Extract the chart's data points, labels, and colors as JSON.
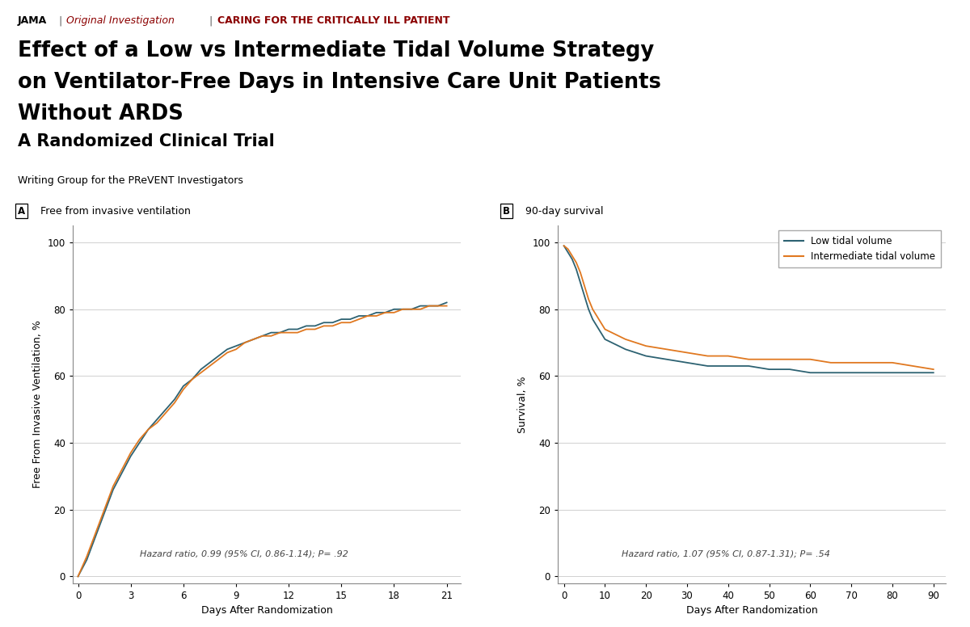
{
  "color_low": "#2d6272",
  "color_intermediate": "#e07820",
  "panel_a_xlabel": "Days After Randomization",
  "panel_a_ylabel": "Free From Invasive Ventilation, %",
  "panel_b_xlabel": "Days After Randomization",
  "panel_b_ylabel": "Survival, %",
  "panel_a_xticks": [
    0,
    3,
    6,
    9,
    12,
    15,
    18,
    21
  ],
  "panel_a_yticks": [
    0,
    20,
    40,
    60,
    80,
    100
  ],
  "panel_b_xticks": [
    0,
    10,
    20,
    30,
    40,
    50,
    60,
    70,
    80,
    90
  ],
  "panel_b_yticks": [
    0,
    20,
    40,
    60,
    80,
    100
  ],
  "panel_a_xlim": [
    -0.3,
    21.8
  ],
  "panel_a_ylim": [
    -2,
    105
  ],
  "panel_b_xlim": [
    -1.5,
    93
  ],
  "panel_b_ylim": [
    -2,
    105
  ],
  "panel_a_annotation": "Hazard ratio, 0.99 (95% CI, 0.86-1.14); P= .92",
  "panel_b_annotation": "Hazard ratio, 1.07 (95% CI, 0.87-1.31); P= .54",
  "legend_low": "Low tidal volume",
  "legend_intermediate": "Intermediate tidal volume",
  "background_color": "#ffffff",
  "panel_a_low_x": [
    0,
    0.5,
    1,
    1.5,
    2,
    2.5,
    3,
    3.5,
    4,
    4.5,
    5,
    5.5,
    6,
    6.5,
    7,
    7.5,
    8,
    8.5,
    9,
    9.5,
    10,
    10.5,
    11,
    11.5,
    12,
    12.5,
    13,
    13.5,
    14,
    14.5,
    15,
    15.5,
    16,
    16.5,
    17,
    17.5,
    18,
    18.5,
    19,
    19.5,
    20,
    20.5,
    21
  ],
  "panel_a_low_y": [
    0,
    5,
    12,
    19,
    26,
    31,
    36,
    40,
    44,
    47,
    50,
    53,
    57,
    59,
    62,
    64,
    66,
    68,
    69,
    70,
    71,
    72,
    73,
    73,
    74,
    74,
    75,
    75,
    76,
    76,
    77,
    77,
    78,
    78,
    79,
    79,
    80,
    80,
    80,
    81,
    81,
    81,
    82
  ],
  "panel_a_int_x": [
    0,
    0.5,
    1,
    1.5,
    2,
    2.5,
    3,
    3.5,
    4,
    4.5,
    5,
    5.5,
    6,
    6.5,
    7,
    7.5,
    8,
    8.5,
    9,
    9.5,
    10,
    10.5,
    11,
    11.5,
    12,
    12.5,
    13,
    13.5,
    14,
    14.5,
    15,
    15.5,
    16,
    16.5,
    17,
    17.5,
    18,
    18.5,
    19,
    19.5,
    20,
    20.5,
    21
  ],
  "panel_a_int_y": [
    0,
    6,
    13,
    20,
    27,
    32,
    37,
    41,
    44,
    46,
    49,
    52,
    56,
    59,
    61,
    63,
    65,
    67,
    68,
    70,
    71,
    72,
    72,
    73,
    73,
    73,
    74,
    74,
    75,
    75,
    76,
    76,
    77,
    78,
    78,
    79,
    79,
    80,
    80,
    80,
    81,
    81,
    81
  ],
  "panel_b_low_x": [
    0,
    1,
    2,
    3,
    4,
    5,
    6,
    7,
    8,
    9,
    10,
    15,
    20,
    25,
    30,
    35,
    40,
    45,
    50,
    55,
    60,
    65,
    70,
    75,
    80,
    85,
    90
  ],
  "panel_b_low_y": [
    99,
    97,
    95,
    92,
    88,
    84,
    80,
    77,
    75,
    73,
    71,
    68,
    66,
    65,
    64,
    63,
    63,
    63,
    62,
    62,
    61,
    61,
    61,
    61,
    61,
    61,
    61
  ],
  "panel_b_int_x": [
    0,
    1,
    2,
    3,
    4,
    5,
    6,
    7,
    8,
    9,
    10,
    15,
    20,
    25,
    30,
    35,
    40,
    45,
    50,
    55,
    60,
    65,
    70,
    75,
    80,
    85,
    90
  ],
  "panel_b_int_y": [
    99,
    98,
    96,
    94,
    91,
    87,
    83,
    80,
    78,
    76,
    74,
    71,
    69,
    68,
    67,
    66,
    66,
    65,
    65,
    65,
    65,
    64,
    64,
    64,
    64,
    63,
    62
  ]
}
